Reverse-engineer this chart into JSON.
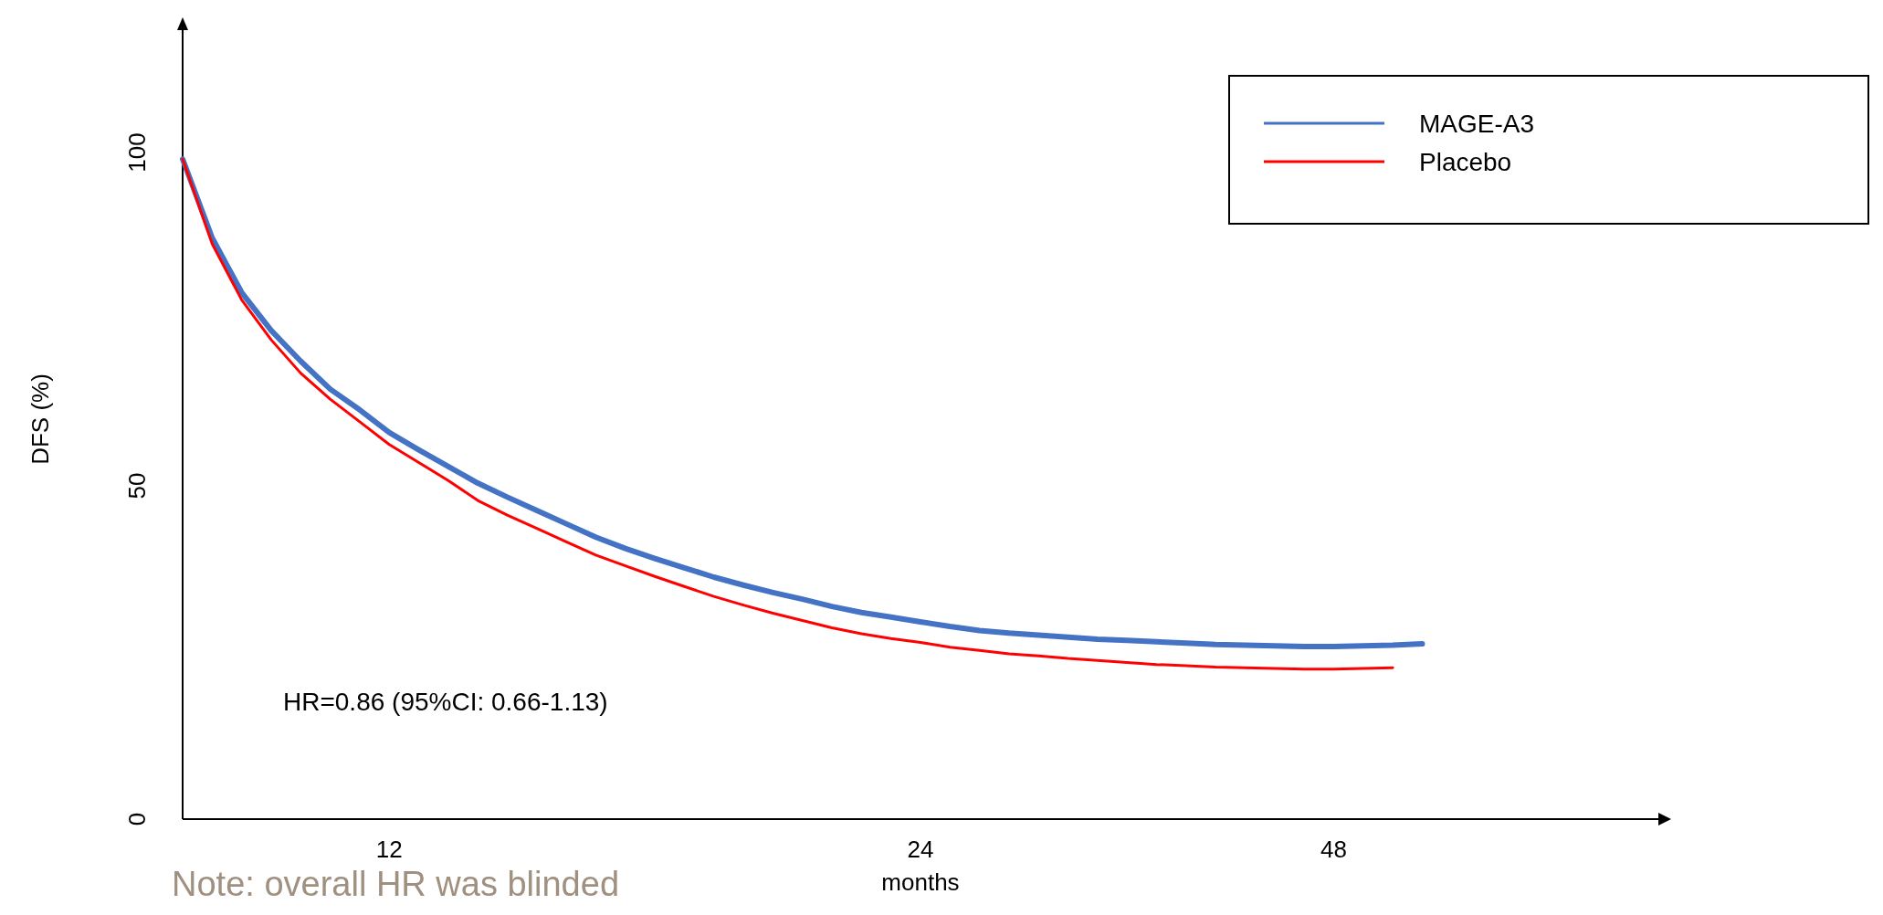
{
  "chart_data": {
    "type": "line",
    "xlabel": "months",
    "ylabel": "DFS (%)",
    "categories": [
      null,
      null,
      null,
      null,
      null,
      null,
      null,
      "12",
      null,
      null,
      null,
      null,
      null,
      null,
      null,
      null,
      null,
      null,
      null,
      null,
      null,
      null,
      null,
      null,
      null,
      "24",
      null,
      null,
      null,
      null,
      null,
      null,
      null,
      null,
      null,
      null,
      null,
      null,
      null,
      "48",
      null,
      null,
      null,
      null,
      null,
      null,
      null,
      null,
      null,
      null,
      null
    ],
    "series": [
      {
        "name": "MAGE-A3",
        "color": "#4472c4",
        "values": [
          99,
          87.2,
          79,
          73.3,
          68.7,
          64.5,
          61.4,
          58,
          55.4,
          52.9,
          50.4,
          48.3,
          46.3,
          44.3,
          42.3,
          40.6,
          39.1,
          37.7,
          36.3,
          35.1,
          34,
          33,
          31.9,
          31,
          30.3,
          29.6,
          28.9,
          28.3,
          27.9,
          27.6,
          27.3,
          27,
          26.8,
          26.6,
          26.4,
          26.2,
          26.1,
          26,
          25.9,
          25.9,
          26,
          26.1,
          26.3,
          null,
          null,
          null,
          null,
          null,
          null,
          null,
          null
        ]
      },
      {
        "name": "Placebo",
        "color": "#ff0000",
        "values": [
          99,
          86.3,
          77.9,
          71.9,
          66.9,
          63,
          59.6,
          56.2,
          53.5,
          50.8,
          47.8,
          45.6,
          43.6,
          41.6,
          39.6,
          38,
          36.4,
          34.9,
          33.4,
          32.1,
          30.9,
          29.8,
          28.7,
          27.8,
          27.1,
          26.5,
          25.8,
          25.3,
          24.8,
          24.5,
          24.1,
          23.8,
          23.5,
          23.2,
          23,
          22.8,
          22.7,
          22.6,
          22.5,
          22.5,
          22.6,
          22.7,
          null,
          null,
          null,
          null,
          null,
          null,
          null,
          null,
          null
        ]
      }
    ],
    "ylim": [
      0,
      120
    ],
    "yticks": [
      0,
      50,
      100
    ],
    "legend": "top right",
    "grid": false,
    "marker": "none",
    "line_style": "solid",
    "annotations": [
      "HR=0.86 (95%CI: 0.66-1.13)",
      "Note: overall HR was blinded"
    ]
  }
}
